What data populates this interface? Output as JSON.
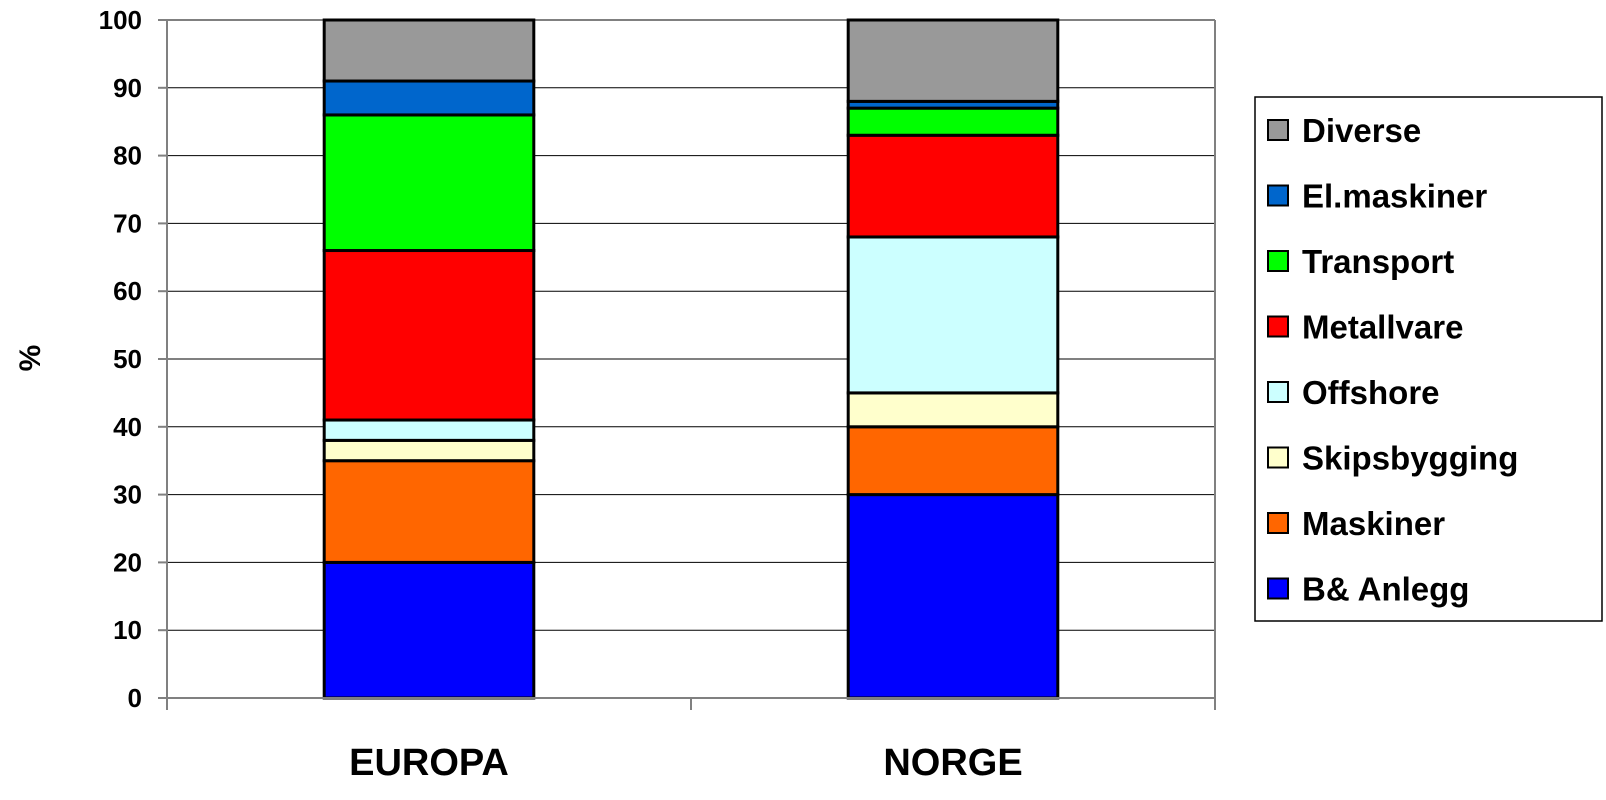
{
  "chart_data": {
    "type": "bar",
    "stacked": true,
    "categories": [
      "EUROPA",
      "NORGE"
    ],
    "ylabel": "%",
    "xlabel": "",
    "ylim": [
      0,
      100
    ],
    "yticks": [
      "0",
      "10",
      "20",
      "30",
      "40",
      "50",
      "60",
      "70",
      "80",
      "90",
      "100"
    ],
    "grid": true,
    "legend_position": "right",
    "series": [
      {
        "name": "B& Anlegg",
        "color": "#0000FF",
        "values": [
          20,
          30
        ]
      },
      {
        "name": "Maskiner",
        "color": "#FF6600",
        "values": [
          15,
          10
        ]
      },
      {
        "name": "Skipsbygging",
        "color": "#FFFFCC",
        "values": [
          3,
          5
        ]
      },
      {
        "name": "Offshore",
        "color": "#CCFFFF",
        "values": [
          3,
          23
        ]
      },
      {
        "name": "Metallvare",
        "color": "#FF0000",
        "values": [
          25,
          15
        ]
      },
      {
        "name": "Transport",
        "color": "#00FF00",
        "values": [
          20,
          4
        ]
      },
      {
        "name": "El.maskiner",
        "color": "#0066CC",
        "values": [
          5,
          1
        ]
      },
      {
        "name": "Diverse",
        "color": "#999999",
        "values": [
          9,
          12
        ]
      }
    ]
  }
}
